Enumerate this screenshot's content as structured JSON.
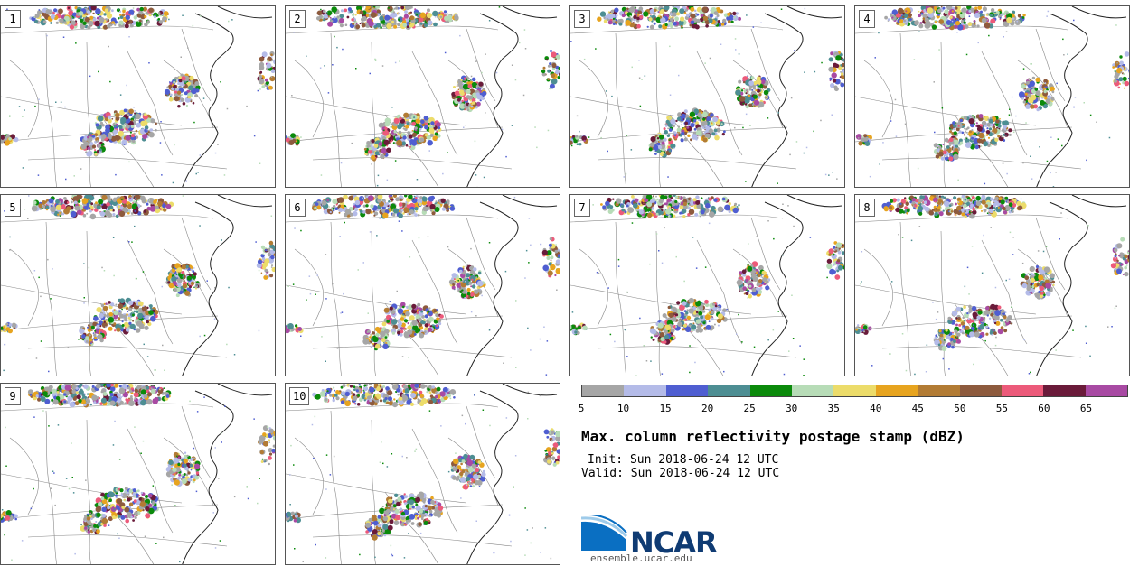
{
  "panels": [
    {
      "label": "1"
    },
    {
      "label": "2"
    },
    {
      "label": "3"
    },
    {
      "label": "4"
    },
    {
      "label": "5"
    },
    {
      "label": "6"
    },
    {
      "label": "7"
    },
    {
      "label": "8"
    },
    {
      "label": "9"
    },
    {
      "label": "10"
    }
  ],
  "colorbar": {
    "ticks": [
      "5",
      "10",
      "15",
      "20",
      "25",
      "30",
      "35",
      "40",
      "45",
      "50",
      "55",
      "60",
      "65"
    ],
    "colors": [
      "#a6a6a6",
      "#b4bbe8",
      "#4f5ed1",
      "#4d8e93",
      "#0b8a0b",
      "#b7dcb7",
      "#ecdc6a",
      "#e7a41f",
      "#b27b34",
      "#8d5a3d",
      "#ec5a7a",
      "#6a1b3a",
      "#a84aa3"
    ]
  },
  "title": "Max. column reflectivity postage stamp (dBZ)",
  "init_text": "Init: Sun 2018-06-24 12 UTC",
  "valid_text": "Valid: Sun 2018-06-24 12 UTC",
  "logo": {
    "name": "NCAR",
    "url": "ensemble.ucar.edu",
    "colors": {
      "blue": "#0a6fc2",
      "navy": "#0f3b73"
    }
  }
}
